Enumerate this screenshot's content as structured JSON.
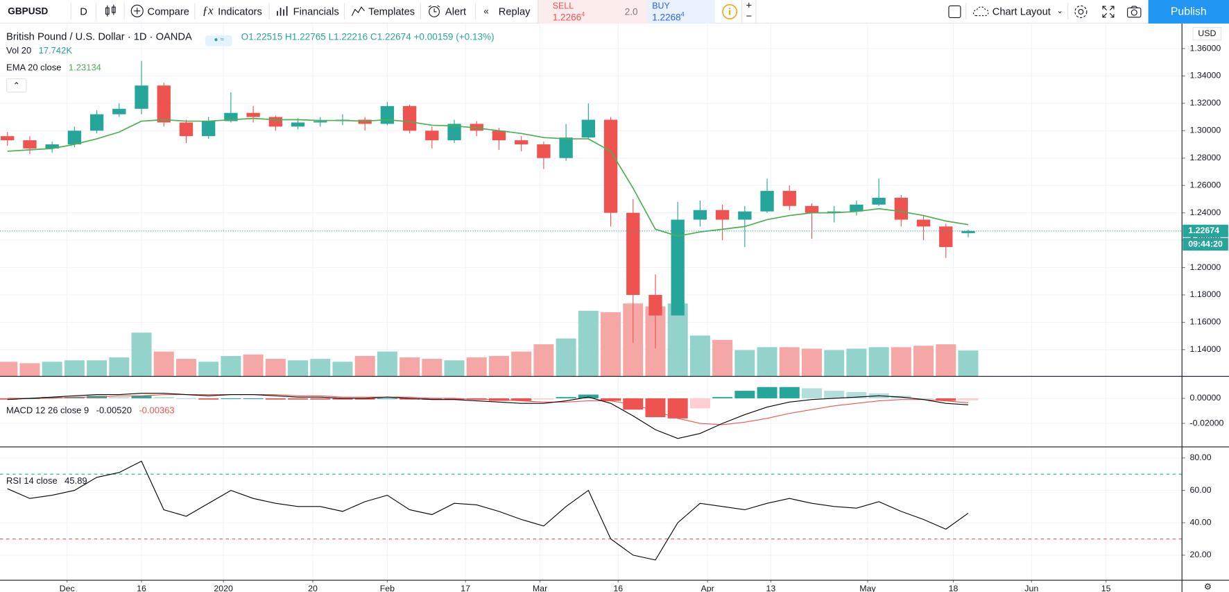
{
  "toolbar": {
    "symbol": "GBPUSD",
    "interval": "D",
    "buttons": [
      "Compare",
      "Indicators",
      "Financials",
      "Templates",
      "Alert",
      "Replay"
    ],
    "sell_label": "SELL",
    "sell_price": "1.2266",
    "sell_sup": "4",
    "spread": "2.0",
    "buy_label": "BUY",
    "buy_price": "1.2268",
    "buy_sup": "4",
    "layout": "Chart Layout",
    "publish": "Publish"
  },
  "chart_data": [
    {
      "type": "candlestick",
      "title": "British Pound / U.S. Dollar · 1D · OANDA",
      "ohlc_legend": "O1.22515 H1.22765 L1.22216 C1.22674 +0.00159 (+0.13%)",
      "axis_unit": "USD",
      "countdown": "09:44:20",
      "up_color": "#26a69a",
      "down_color": "#ef5350",
      "x": [
        1,
        4,
        7,
        10,
        13,
        16,
        19,
        22,
        25,
        28,
        31,
        34,
        37,
        40,
        43,
        46,
        49,
        52,
        55,
        58,
        61,
        64,
        67,
        70,
        73,
        76,
        79,
        82,
        85,
        88,
        91,
        94,
        97,
        100,
        103,
        106,
        109,
        112,
        115,
        118,
        121,
        124,
        127,
        130
      ],
      "open": [
        1.296,
        1.293,
        1.287,
        1.29,
        1.3,
        1.312,
        1.316,
        1.333,
        1.306,
        1.296,
        1.307,
        1.313,
        1.31,
        1.303,
        1.306,
        1.307,
        1.308,
        1.305,
        1.318,
        1.3,
        1.293,
        1.305,
        1.3,
        1.293,
        1.29,
        1.28,
        1.295,
        1.308,
        1.24,
        1.18,
        1.165,
        1.235,
        1.242,
        1.235,
        1.241,
        1.256,
        1.245,
        1.24,
        1.241,
        1.246,
        1.251,
        1.235,
        1.23,
        1.22515
      ],
      "high": [
        1.299,
        1.296,
        1.292,
        1.303,
        1.315,
        1.32,
        1.351,
        1.335,
        1.308,
        1.31,
        1.328,
        1.318,
        1.311,
        1.309,
        1.31,
        1.312,
        1.31,
        1.321,
        1.319,
        1.303,
        1.308,
        1.307,
        1.302,
        1.296,
        1.292,
        1.305,
        1.32,
        1.31,
        1.25,
        1.195,
        1.248,
        1.249,
        1.246,
        1.245,
        1.265,
        1.26,
        1.247,
        1.245,
        1.249,
        1.265,
        1.253,
        1.238,
        1.232,
        1.22765
      ],
      "low": [
        1.289,
        1.283,
        1.284,
        1.288,
        1.298,
        1.31,
        1.312,
        1.303,
        1.291,
        1.294,
        1.306,
        1.306,
        1.3,
        1.301,
        1.303,
        1.304,
        1.3,
        1.304,
        1.298,
        1.287,
        1.291,
        1.296,
        1.286,
        1.285,
        1.272,
        1.278,
        1.294,
        1.23,
        1.145,
        1.141,
        1.165,
        1.23,
        1.22,
        1.215,
        1.24,
        1.242,
        1.221,
        1.233,
        1.238,
        1.245,
        1.23,
        1.22,
        1.207,
        1.22216
      ],
      "close": [
        1.293,
        1.287,
        1.29,
        1.3,
        1.312,
        1.316,
        1.333,
        1.306,
        1.296,
        1.307,
        1.313,
        1.31,
        1.303,
        1.306,
        1.307,
        1.308,
        1.305,
        1.318,
        1.3,
        1.293,
        1.305,
        1.3,
        1.293,
        1.29,
        1.28,
        1.295,
        1.308,
        1.24,
        1.18,
        1.165,
        1.235,
        1.242,
        1.235,
        1.241,
        1.256,
        1.245,
        1.24,
        1.241,
        1.246,
        1.251,
        1.235,
        1.23,
        1.215,
        1.22674
      ],
      "ylim": [
        1.1205,
        1.3783
      ],
      "yticks": [
        {
          "value": 1.14,
          "label": "1.14000"
        },
        {
          "value": 1.16,
          "label": "1.16000"
        },
        {
          "value": 1.18,
          "label": "1.18000"
        },
        {
          "value": 1.2,
          "label": "1.20000"
        },
        {
          "value": 1.22,
          "label": "1.22000"
        },
        {
          "value": 1.24,
          "label": "1.24000"
        },
        {
          "value": 1.26,
          "label": "1.26000"
        },
        {
          "value": 1.28,
          "label": "1.28000"
        },
        {
          "value": 1.3,
          "label": "1.30000"
        },
        {
          "value": 1.32,
          "label": "1.32000"
        },
        {
          "value": 1.34,
          "label": "1.34000"
        },
        {
          "value": 1.36,
          "label": "1.36000"
        }
      ],
      "xlim": [
        0,
        158.7
      ],
      "xticks": [
        {
          "value": 9,
          "label": "Dec"
        },
        {
          "value": 19,
          "label": "16"
        },
        {
          "value": 30,
          "label": "2020"
        },
        {
          "value": 42,
          "label": "20"
        },
        {
          "value": 52,
          "label": "Feb"
        },
        {
          "value": 62.5,
          "label": "17"
        },
        {
          "value": 72.5,
          "label": "Mar"
        },
        {
          "value": 83,
          "label": "16"
        },
        {
          "value": 95,
          "label": "Apr"
        },
        {
          "value": 103.5,
          "label": "13"
        },
        {
          "value": 116.5,
          "label": "May"
        },
        {
          "value": 128,
          "label": "18"
        },
        {
          "value": 138.5,
          "label": "Jun"
        },
        {
          "value": 148.5,
          "label": "15"
        }
      ],
      "volume": {
        "name": "Vol 20",
        "value_label": "17.742K",
        "up_color": "#93d3cc",
        "down_color": "#f5a7a5",
        "ylim": [
          0,
          242
        ],
        "values": [
          10,
          9,
          10,
          11,
          11,
          13,
          30,
          17,
          12,
          10,
          14,
          15,
          12,
          11,
          12,
          10,
          14,
          17,
          13,
          12,
          11,
          13,
          14,
          17,
          22,
          26,
          45,
          44,
          50,
          48,
          50,
          28,
          25,
          18,
          20,
          20,
          19,
          18,
          19,
          20,
          20,
          21,
          22,
          17.742
        ]
      },
      "ema": {
        "name": "EMA 20 close",
        "color": "#4caf50",
        "values": [
          1.285,
          1.286,
          1.287,
          1.29,
          1.294,
          1.299,
          1.307,
          1.308,
          1.307,
          1.307,
          1.308,
          1.309,
          1.308,
          1.308,
          1.3075,
          1.3075,
          1.307,
          1.308,
          1.3065,
          1.304,
          1.3035,
          1.302,
          1.3,
          1.298,
          1.295,
          1.294,
          1.294,
          1.285,
          1.258,
          1.228,
          1.223,
          1.226,
          1.228,
          1.23,
          1.235,
          1.238,
          1.24,
          1.24,
          1.241,
          1.243,
          1.241,
          1.238,
          1.234,
          1.23134
        ]
      }
    },
    {
      "type": "macd",
      "name": "MACD 12 26 close 9",
      "macd": {
        "value_label": "-0.00520",
        "color": "#000000",
        "values": [
          -0.001,
          0.0,
          0.001,
          0.002,
          0.003,
          0.003,
          0.004,
          0.004,
          0.003,
          0.002,
          0.003,
          0.003,
          0.002,
          0.001,
          0.001,
          0.0,
          0.0,
          0.001,
          0.0,
          -0.001,
          -0.001,
          -0.002,
          -0.003,
          -0.004,
          -0.004,
          -0.002,
          0.001,
          -0.004,
          -0.014,
          -0.025,
          -0.032,
          -0.028,
          -0.02,
          -0.013,
          -0.007,
          -0.003,
          -0.001,
          0.0,
          0.001,
          0.002,
          0.001,
          -0.001,
          -0.004,
          -0.0052
        ]
      },
      "signal": {
        "value_label": "-0.00363",
        "color": "#ef5350",
        "values": [
          0.0,
          0.0,
          0.0,
          0.001,
          0.001,
          0.002,
          0.002,
          0.003,
          0.003,
          0.003,
          0.003,
          0.003,
          0.003,
          0.002,
          0.002,
          0.001,
          0.001,
          0.001,
          0.001,
          0.0,
          0.0,
          -0.001,
          -0.001,
          -0.002,
          -0.003,
          -0.003,
          -0.002,
          -0.002,
          -0.005,
          -0.01,
          -0.016,
          -0.02,
          -0.021,
          -0.019,
          -0.016,
          -0.012,
          -0.009,
          -0.006,
          -0.004,
          -0.002,
          -0.001,
          -0.001,
          -0.002,
          -0.00363
        ]
      },
      "histogram": {
        "colors": [
          "#26a69a",
          "#b2dfdb",
          "#ef5350",
          "#ffcdd2"
        ],
        "values": [
          -0.001,
          0,
          0.001,
          0.001,
          0.002,
          0.001,
          0.002,
          0.001,
          0,
          -0.001,
          0,
          0,
          -0.001,
          -0.001,
          -0.001,
          -0.001,
          -0.001,
          0,
          -0.001,
          -0.001,
          -0.001,
          -0.001,
          -0.002,
          -0.002,
          -0.001,
          0.001,
          0.003,
          -0.002,
          -0.009,
          -0.015,
          -0.016,
          -0.008,
          0.001,
          0.006,
          0.009,
          0.009,
          0.008,
          0.006,
          0.005,
          0.004,
          0.002,
          0,
          -0.002,
          -0.00157
        ]
      },
      "ylim": [
        -0.03875,
        0.0175
      ],
      "yticks": [
        {
          "value": -0.02,
          "label": "-0.02000"
        },
        {
          "value": 0,
          "label": "0.00000"
        }
      ]
    },
    {
      "type": "rsi",
      "name": "RSI 14 close",
      "color": "#000000",
      "band_colors": [
        "#ef5350",
        "#26a69a"
      ],
      "bands": [
        30,
        70
      ],
      "values": [
        61,
        55,
        57,
        60,
        68,
        71,
        78,
        48,
        44,
        52,
        60,
        55,
        52,
        50,
        50,
        47,
        53,
        57,
        48,
        45,
        52,
        51,
        47,
        42,
        38,
        50,
        60,
        30,
        20,
        17,
        40,
        52,
        50,
        48,
        52,
        55,
        52,
        50,
        49,
        53,
        47,
        42,
        36,
        45.89
      ],
      "ylim": [
        4.5,
        86.8
      ],
      "yticks": [
        {
          "value": 20,
          "label": "20.00"
        },
        {
          "value": 40,
          "label": "40.00"
        },
        {
          "value": 60,
          "label": "60.00"
        },
        {
          "value": 80,
          "label": "80.00"
        }
      ]
    }
  ]
}
